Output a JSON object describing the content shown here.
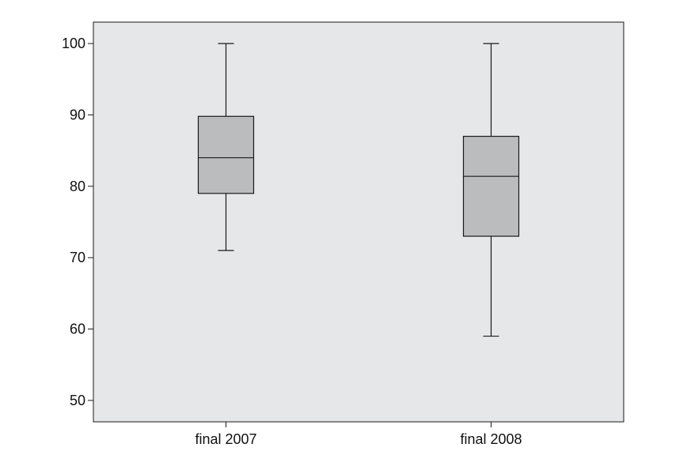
{
  "chart_data": {
    "type": "box",
    "title": "",
    "xlabel": "",
    "ylabel": "",
    "ylim": [
      47,
      103
    ],
    "y_ticks": [
      "50",
      "60",
      "70",
      "80",
      "90",
      "100"
    ],
    "categories": [
      "final 2007",
      "final 2008"
    ],
    "boxes": [
      {
        "category": "final 2007",
        "min": 71,
        "q1": 79,
        "median": 84,
        "q3": 89.8,
        "max": 100
      },
      {
        "category": "final 2008",
        "min": 59,
        "q1": 73,
        "median": 81.4,
        "q3": 87,
        "max": 100
      }
    ],
    "grid": false,
    "colors": {
      "plot_background": "#e6e7e9",
      "box_fill": "#bbbcbe",
      "stroke": "#1a1a1a"
    }
  }
}
